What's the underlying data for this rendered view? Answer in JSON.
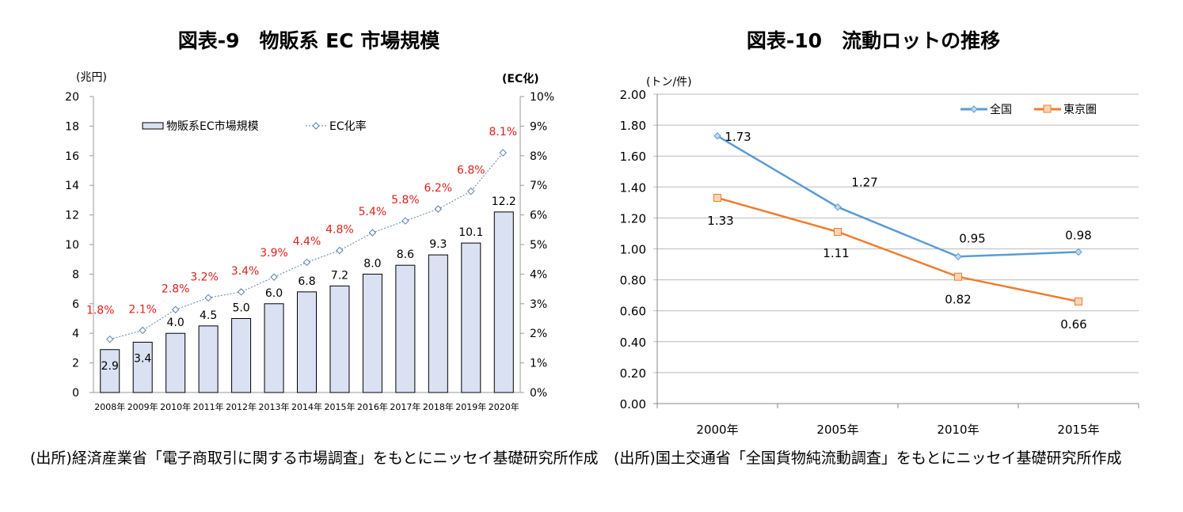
{
  "left_chart_title": "図表-9　物販系 EC 市場規模",
  "right_chart_title": "図表-10　流動ロットの推移",
  "left_source": "(出所)経済産業省「電子商取引に関する市場調査」をもとにニッセイ基礎研究所作成",
  "right_source": "(出所)国土交通省「全国貨物純流動調査」をもとにニッセイ基礎研究所作成",
  "chart_data": [
    {
      "type": "bar",
      "title": "図表-9　物販系 EC 市場規模",
      "ylabel": "(兆円)",
      "y2label": "(EC化)",
      "ylim": [
        0,
        20
      ],
      "y2lim": [
        0,
        10
      ],
      "yticks": [
        "0",
        "2",
        "4",
        "6",
        "8",
        "10",
        "12",
        "14",
        "16",
        "18",
        "20"
      ],
      "y2ticks": [
        "0%",
        "1%",
        "2%",
        "3%",
        "4%",
        "5%",
        "6%",
        "7%",
        "8%",
        "9%",
        "10%"
      ],
      "legend_position": "top-left",
      "categories": [
        "2008年",
        "2009年",
        "2010年",
        "2011年",
        "2012年",
        "2013年",
        "2014年",
        "2015年",
        "2016年",
        "2017年",
        "2018年",
        "2019年",
        "2020年"
      ],
      "series": [
        {
          "name": "物販系EC市場規模",
          "type": "bar",
          "axis": "left",
          "color": "#d9e1f2",
          "values": [
            2.9,
            3.4,
            4.0,
            4.5,
            5.0,
            6.0,
            6.8,
            7.2,
            8.0,
            8.6,
            9.3,
            10.1,
            12.2
          ],
          "labels": [
            "2.9",
            "3.4",
            "4.0",
            "4.5",
            "5.0",
            "6.0",
            "6.8",
            "7.2",
            "8.0",
            "8.6",
            "9.3",
            "10.1",
            "12.2"
          ]
        },
        {
          "name": "EC化率",
          "type": "line",
          "style": "dotted",
          "marker": "diamond",
          "axis": "right",
          "color": "#5b7fa6",
          "label_color": "#e0201b",
          "values": [
            1.8,
            2.1,
            2.8,
            3.2,
            3.4,
            3.9,
            4.4,
            4.8,
            5.4,
            5.8,
            6.2,
            6.8,
            8.1
          ],
          "labels": [
            "1.8%",
            "2.1%",
            "2.8%",
            "3.2%",
            "3.4%",
            "3.9%",
            "4.4%",
            "4.8%",
            "5.4%",
            "5.8%",
            "6.2%",
            "6.8%",
            "8.1%"
          ]
        }
      ]
    },
    {
      "type": "line",
      "title": "図表-10　流動ロットの推移",
      "ylabel": "(トン/件)",
      "ylim": [
        0,
        2.0
      ],
      "yticks": [
        "0.00",
        "0.20",
        "0.40",
        "0.60",
        "0.80",
        "1.00",
        "1.20",
        "1.40",
        "1.60",
        "1.80",
        "2.00"
      ],
      "grid": true,
      "legend_position": "top-right",
      "categories": [
        "2000年",
        "2005年",
        "2010年",
        "2015年"
      ],
      "series": [
        {
          "name": "全国",
          "color": "#5b9bd5",
          "marker": "diamond",
          "values": [
            1.73,
            1.27,
            0.95,
            0.98
          ],
          "labels": [
            "1.73",
            "1.27",
            "0.95",
            "0.98"
          ]
        },
        {
          "name": "東京圏",
          "color": "#ed7d31",
          "marker": "square",
          "values": [
            1.33,
            1.11,
            0.82,
            0.66
          ],
          "labels": [
            "1.33",
            "1.11",
            "0.82",
            "0.66"
          ]
        }
      ]
    }
  ]
}
